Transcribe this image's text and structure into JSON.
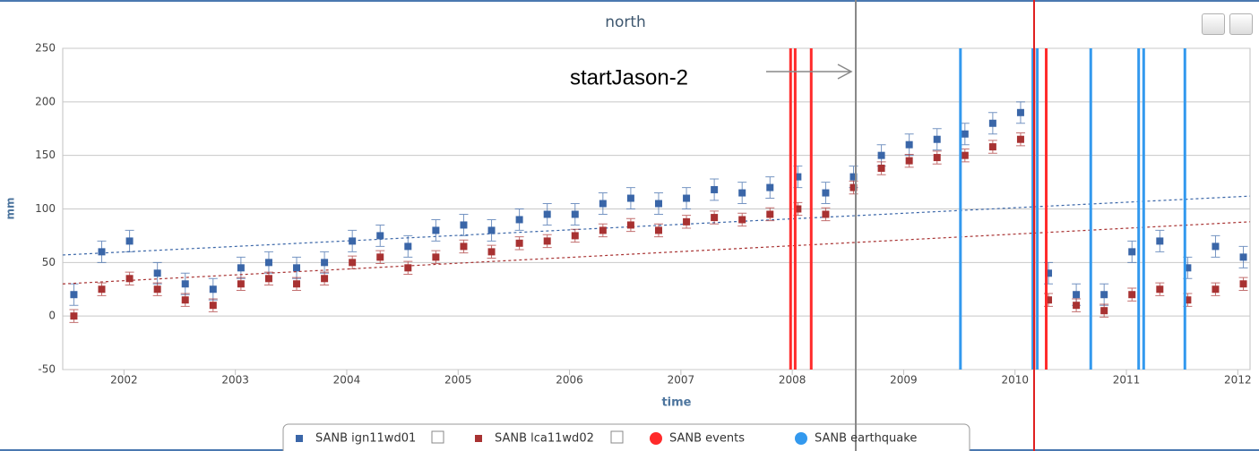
{
  "chart_data": {
    "type": "scatter",
    "title": "north",
    "x_label": "time",
    "y_label": "mm",
    "annotation": {
      "text": "startJason-2",
      "x": 2008.57
    },
    "xlim": [
      2001.45,
      2012.11
    ],
    "xticks": [
      2002,
      2003,
      2004,
      2005,
      2006,
      2007,
      2008,
      2009,
      2010,
      2011,
      2012
    ],
    "ylim": [
      -50,
      250
    ],
    "yticks": [
      -50,
      0,
      50,
      100,
      150,
      200,
      250
    ],
    "grid": true,
    "x": [
      2001.55,
      2001.8,
      2002.05,
      2002.3,
      2002.55,
      2002.8,
      2003.05,
      2003.3,
      2003.55,
      2003.8,
      2004.05,
      2004.3,
      2004.55,
      2004.8,
      2005.05,
      2005.3,
      2005.55,
      2005.8,
      2006.05,
      2006.3,
      2006.55,
      2006.8,
      2007.05,
      2007.3,
      2007.55,
      2007.8,
      2008.05,
      2008.3,
      2008.55,
      2008.8,
      2009.05,
      2009.3,
      2009.55,
      2009.8,
      2010.05,
      2010.3,
      2010.55,
      2010.8,
      2011.05,
      2011.3,
      2011.55,
      2011.8,
      2012.05
    ],
    "series": [
      {
        "name": "SANB ign11wd01",
        "color": "#3a66a8",
        "error": 10,
        "values": [
          20,
          60,
          70,
          40,
          30,
          25,
          45,
          50,
          45,
          50,
          70,
          75,
          65,
          80,
          85,
          80,
          90,
          95,
          95,
          105,
          110,
          105,
          110,
          118,
          115,
          120,
          130,
          115,
          130,
          150,
          160,
          165,
          170,
          180,
          190,
          40,
          20,
          20,
          60,
          70,
          45,
          65,
          55
        ],
        "trend_x": [
          2001.45,
          2012.11
        ],
        "trend_values": [
          57,
          112
        ]
      },
      {
        "name": "SANB lca11wd02",
        "color": "#a83232",
        "error": 6,
        "values": [
          0,
          25,
          35,
          25,
          15,
          10,
          30,
          35,
          30,
          35,
          50,
          55,
          45,
          55,
          65,
          60,
          68,
          70,
          75,
          80,
          85,
          80,
          88,
          92,
          90,
          95,
          100,
          95,
          120,
          138,
          145,
          148,
          150,
          158,
          165,
          15,
          10,
          5,
          20,
          25,
          15,
          25,
          30
        ],
        "trend_x": [
          2001.45,
          2012.11
        ],
        "trend_values": [
          30,
          88
        ]
      }
    ],
    "events": [
      {
        "name": "SANB events",
        "color": "#ff2a2a",
        "x": [
          2007.985,
          2008.026,
          2008.17,
          2010.17,
          2010.28
        ]
      },
      {
        "name": "SANB earthquake",
        "color": "#3399ee",
        "x": [
          2009.51,
          2010.16,
          2010.2,
          2010.68,
          2011.11,
          2011.155,
          2011.525
        ]
      }
    ]
  }
}
